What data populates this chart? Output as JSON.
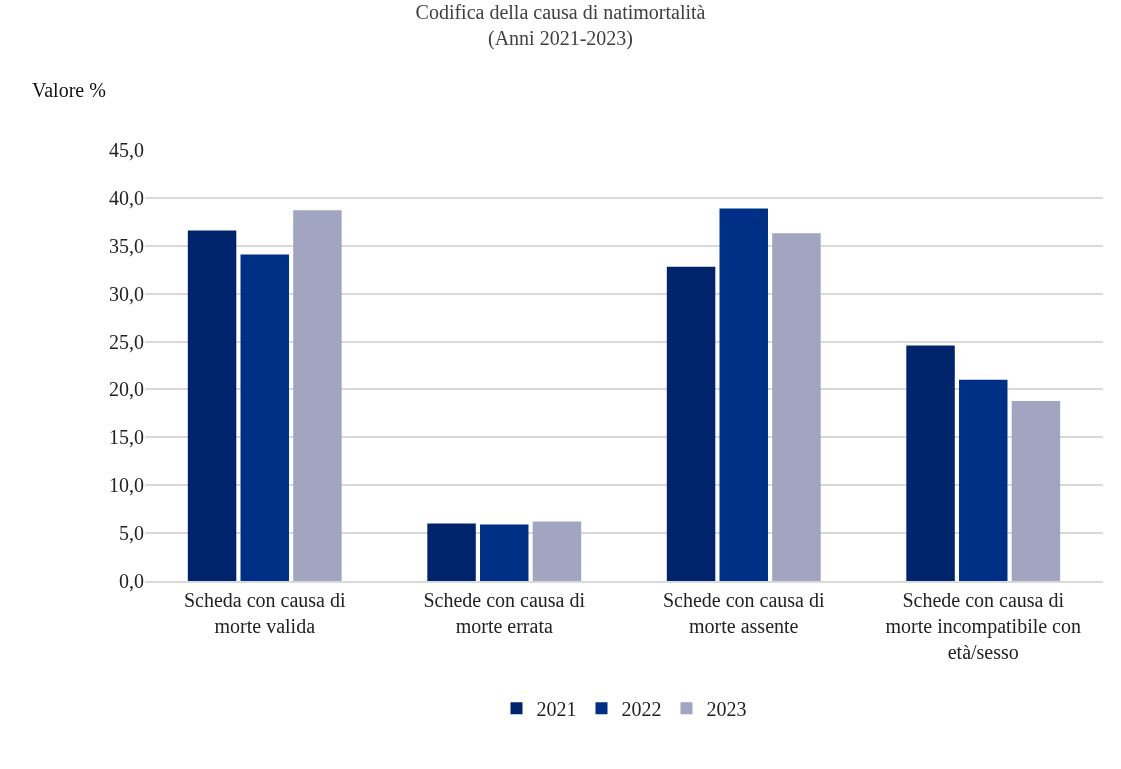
{
  "chart_data": {
    "type": "bar",
    "title": "Codifica della causa di natimortalità\n(Anni 2021-2023)",
    "ylabel": "Valore %",
    "categories": [
      "Scheda con causa di morte valida",
      "Schede con causa di morte errata",
      "Schede con causa di morte assente",
      "Schede con causa di morte incompatibile con età/sesso"
    ],
    "series": [
      {
        "name": "2021",
        "color": "#00246b",
        "values": [
          36.6,
          6.0,
          32.8,
          24.6
        ]
      },
      {
        "name": "2022",
        "color": "#002f86",
        "values": [
          34.1,
          5.9,
          38.9,
          21.0
        ]
      },
      {
        "name": "2023",
        "color": "#a1a5bf",
        "values": [
          38.7,
          6.2,
          36.3,
          18.8
        ]
      }
    ],
    "ylim": [
      0,
      45
    ],
    "yticks": [
      {
        "value": 0,
        "label": "0,0"
      },
      {
        "value": 5,
        "label": "5,0"
      },
      {
        "value": 10,
        "label": "10,0"
      },
      {
        "value": 15,
        "label": "15,0"
      },
      {
        "value": 20,
        "label": "20,0"
      },
      {
        "value": 25,
        "label": "25,0"
      },
      {
        "value": 30,
        "label": "30,0"
      },
      {
        "value": 35,
        "label": "35,0"
      },
      {
        "value": 40,
        "label": "40,0"
      },
      {
        "value": 45,
        "label": "45,0"
      }
    ],
    "grid": "y",
    "legend": "bottom"
  }
}
